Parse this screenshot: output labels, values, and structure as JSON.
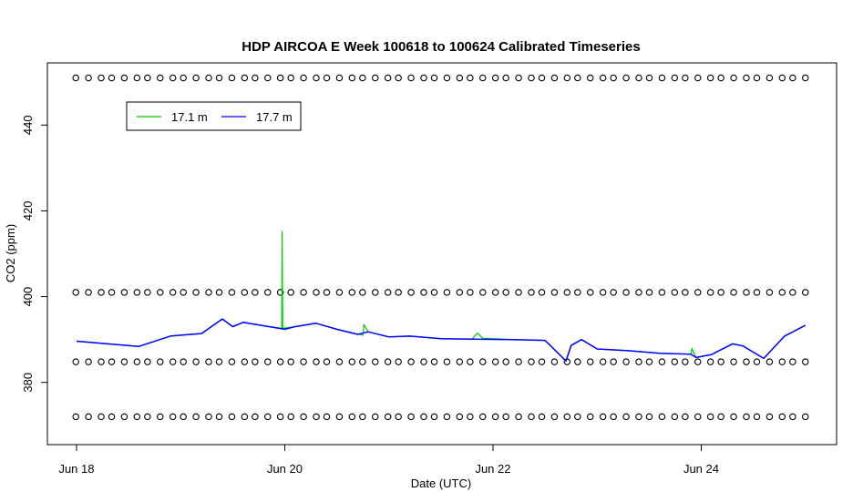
{
  "chart_data": {
    "type": "line",
    "title": "HDP AIRCOA E  Week 100618 to 100624  Calibrated Timeseries",
    "xlabel": "Date (UTC)",
    "ylabel": "CO2 (ppm)",
    "x_ticks": [
      {
        "x": 0,
        "label": "Jun 18"
      },
      {
        "x": 2,
        "label": "Jun 20"
      },
      {
        "x": 4,
        "label": "Jun 22"
      },
      {
        "x": 6,
        "label": "Jun 24"
      }
    ],
    "y_ticks": [
      380,
      400,
      420,
      440
    ],
    "xlim": [
      -0.28,
      7.3
    ],
    "ylim": [
      365.5,
      454.5
    ],
    "grid": false,
    "legend": {
      "placement": "top-left",
      "entries": [
        {
          "label": "17.1 m",
          "color": "#00cc00"
        },
        {
          "label": "17.7 m",
          "color": "#0000ff"
        }
      ]
    },
    "series": [
      {
        "name": "17.1 m",
        "color": "#00cc00",
        "x": [
          0,
          0.3,
          0.6,
          0.9,
          1.0,
          1.2,
          1.4,
          1.5,
          1.6,
          1.8,
          1.97,
          1.975,
          1.98,
          2.1,
          2.3,
          2.5,
          2.75,
          2.76,
          2.8,
          3.0,
          3.2,
          3.5,
          3.8,
          3.85,
          3.9,
          4.2,
          4.5,
          4.7,
          4.75,
          4.85,
          5.0,
          5.3,
          5.6,
          5.9,
          5.91,
          5.95,
          6.1,
          6.3,
          6.4,
          6.6,
          6.8,
          7.0
        ],
        "values": [
          389.6,
          389.0,
          388.4,
          390.8,
          391.0,
          391.4,
          394.8,
          393.0,
          394.0,
          393.2,
          392.6,
          415.2,
          392.6,
          393.0,
          393.8,
          392.4,
          391.0,
          393.5,
          391.8,
          390.6,
          390.8,
          390.2,
          390.1,
          391.5,
          390.3,
          390.0,
          389.8,
          385.0,
          388.6,
          390.0,
          387.8,
          387.4,
          386.8,
          386.6,
          387.9,
          385.8,
          386.5,
          389.0,
          388.5,
          385.6,
          390.8,
          393.3
        ]
      },
      {
        "name": "17.7 m",
        "color": "#0000ff",
        "x": [
          0,
          0.3,
          0.6,
          0.9,
          1.0,
          1.2,
          1.4,
          1.5,
          1.6,
          1.8,
          2.0,
          2.1,
          2.3,
          2.5,
          2.7,
          2.8,
          3.0,
          3.2,
          3.5,
          3.8,
          4.2,
          4.5,
          4.7,
          4.75,
          4.85,
          5.0,
          5.3,
          5.6,
          5.9,
          5.95,
          6.1,
          6.3,
          6.4,
          6.6,
          6.8,
          7.0
        ],
        "values": [
          389.6,
          389.0,
          388.4,
          390.8,
          391.0,
          391.4,
          394.8,
          393.0,
          394.0,
          393.2,
          392.4,
          393.0,
          393.8,
          392.4,
          391.2,
          391.8,
          390.6,
          390.8,
          390.2,
          390.1,
          390.0,
          389.8,
          385.0,
          388.6,
          390.0,
          387.8,
          387.4,
          386.8,
          386.6,
          385.8,
          386.5,
          389.0,
          388.5,
          385.6,
          390.8,
          393.3
        ]
      }
    ],
    "reference_levels": [
      {
        "value": 451.0
      },
      {
        "value": 401.0
      },
      {
        "value": 384.8
      },
      {
        "value": 372.0
      }
    ],
    "reference_x_range": [
      0,
      7
    ],
    "reference_marker": "circle"
  }
}
